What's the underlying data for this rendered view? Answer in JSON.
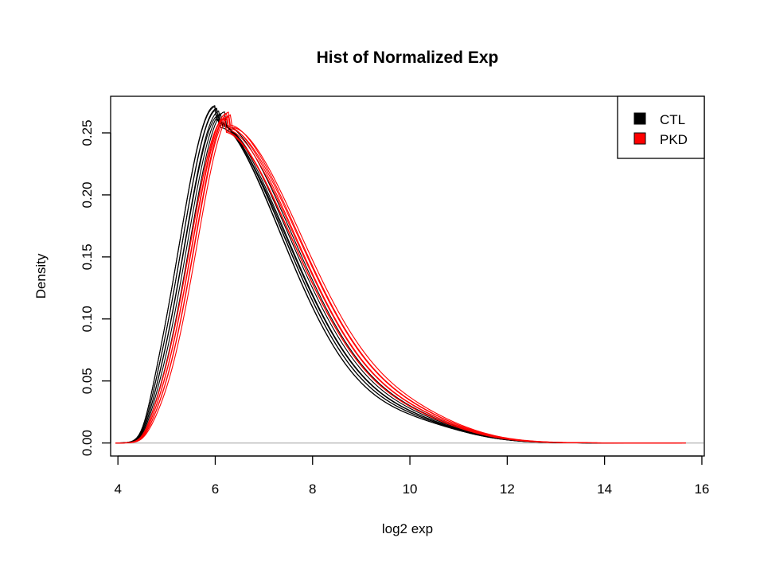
{
  "chart_data": {
    "type": "line",
    "title": "Hist of Normalized Exp",
    "xlabel": "log2 exp",
    "ylabel": "Density",
    "xlim": [
      3.85,
      16.05
    ],
    "ylim": [
      -0.0105,
      0.2795
    ],
    "xticks": [
      4,
      6,
      8,
      10,
      12,
      14,
      16
    ],
    "yticks": [
      0.0,
      0.05,
      0.1,
      0.15,
      0.2,
      0.25
    ],
    "xtick_labels": [
      "4",
      "6",
      "8",
      "10",
      "12",
      "14",
      "16"
    ],
    "ytick_labels": [
      "0.00",
      "0.05",
      "0.10",
      "0.15",
      "0.20",
      "0.25"
    ],
    "grid": false,
    "legend": {
      "placement": "top-right",
      "entries": [
        {
          "label": "CTL",
          "color": "#000000"
        },
        {
          "label": "PKD",
          "color": "#ff0000"
        }
      ]
    },
    "baseline": {
      "y": 0,
      "color": "#bebebe"
    },
    "series": [
      {
        "group": "CTL",
        "color": "#000000",
        "peak_x": 6.05,
        "peak_y": 0.27,
        "x_end": 14.2
      },
      {
        "group": "CTL",
        "color": "#000000",
        "peak_x": 6.1,
        "peak_y": 0.268,
        "x_end": 14.3
      },
      {
        "group": "CTL",
        "color": "#000000",
        "peak_x": 6.0,
        "peak_y": 0.271,
        "x_end": 14.1
      },
      {
        "group": "CTL",
        "color": "#000000",
        "peak_x": 6.15,
        "peak_y": 0.266,
        "x_end": 14.4
      },
      {
        "group": "CTL",
        "color": "#000000",
        "peak_x": 6.05,
        "peak_y": 0.269,
        "x_end": 14.2
      },
      {
        "group": "CTL",
        "color": "#000000",
        "peak_x": 6.2,
        "peak_y": 0.267,
        "x_end": 14.3
      },
      {
        "group": "CTL",
        "color": "#000000",
        "peak_x": 6.0,
        "peak_y": 0.272,
        "x_end": 14.0
      },
      {
        "group": "CTL",
        "color": "#000000",
        "peak_x": 6.1,
        "peak_y": 0.265,
        "x_end": 14.4
      },
      {
        "group": "PKD",
        "color": "#ff0000",
        "peak_x": 6.25,
        "peak_y": 0.266,
        "x_end": 15.7
      },
      {
        "group": "PKD",
        "color": "#ff0000",
        "peak_x": 6.3,
        "peak_y": 0.264,
        "x_end": 15.6
      },
      {
        "group": "PKD",
        "color": "#ff0000",
        "peak_x": 6.2,
        "peak_y": 0.262,
        "x_end": 15.7
      },
      {
        "group": "PKD",
        "color": "#ff0000",
        "peak_x": 6.35,
        "peak_y": 0.265,
        "x_end": 15.5
      },
      {
        "group": "PKD",
        "color": "#ff0000",
        "peak_x": 6.25,
        "peak_y": 0.263,
        "x_end": 15.7
      },
      {
        "group": "PKD",
        "color": "#ff0000",
        "peak_x": 6.3,
        "peak_y": 0.267,
        "x_end": 15.6
      },
      {
        "group": "PKD",
        "color": "#ff0000",
        "peak_x": 6.2,
        "peak_y": 0.261,
        "x_end": 15.7
      }
    ]
  }
}
